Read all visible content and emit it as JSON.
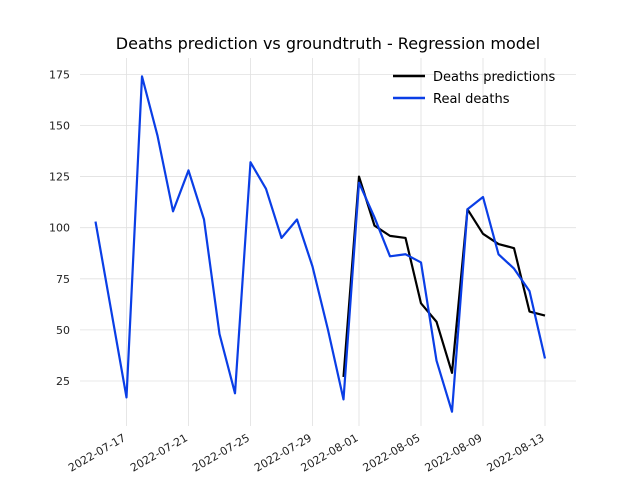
{
  "chart_data": {
    "type": "line",
    "title": "Deaths prediction vs groundtruth - Regression model",
    "xlabel": "",
    "ylabel": "",
    "x_type": "date",
    "xlim": [
      "2022-07-14",
      "2022-08-15"
    ],
    "ylim": [
      3,
      183
    ],
    "x_ticks": [
      "2022-07-17",
      "2022-07-21",
      "2022-07-25",
      "2022-07-29",
      "2022-08-01",
      "2022-08-05",
      "2022-08-09",
      "2022-08-13"
    ],
    "y_ticks": [
      25,
      50,
      75,
      100,
      125,
      150,
      175
    ],
    "grid": true,
    "legend_position": "top-right",
    "series": [
      {
        "name": "Deaths predictions",
        "color": "#000000",
        "points": [
          [
            "2022-07-31",
            27
          ],
          [
            "2022-08-01",
            125
          ],
          [
            "2022-08-02",
            101
          ],
          [
            "2022-08-03",
            96
          ],
          [
            "2022-08-04",
            95
          ],
          [
            "2022-08-05",
            63
          ],
          [
            "2022-08-06",
            54
          ],
          [
            "2022-08-07",
            29
          ],
          [
            "2022-08-08",
            109
          ],
          [
            "2022-08-09",
            97
          ],
          [
            "2022-08-10",
            92
          ],
          [
            "2022-08-11",
            90
          ],
          [
            "2022-08-12",
            59
          ],
          [
            "2022-08-13",
            57
          ]
        ]
      },
      {
        "name": "Real deaths",
        "color": "#0a3ee6",
        "points": [
          [
            "2022-07-15",
            103
          ],
          [
            "2022-07-16",
            60
          ],
          [
            "2022-07-17",
            17
          ],
          [
            "2022-07-18",
            174
          ],
          [
            "2022-07-19",
            145
          ],
          [
            "2022-07-20",
            108
          ],
          [
            "2022-07-21",
            128
          ],
          [
            "2022-07-22",
            104
          ],
          [
            "2022-07-23",
            48
          ],
          [
            "2022-07-24",
            19
          ],
          [
            "2022-07-25",
            132
          ],
          [
            "2022-07-26",
            119
          ],
          [
            "2022-07-27",
            95
          ],
          [
            "2022-07-28",
            104
          ],
          [
            "2022-07-29",
            81
          ],
          [
            "2022-07-30",
            50
          ],
          [
            "2022-07-31",
            16
          ],
          [
            "2022-08-01",
            122
          ],
          [
            "2022-08-02",
            105
          ],
          [
            "2022-08-03",
            86
          ],
          [
            "2022-08-04",
            87
          ],
          [
            "2022-08-05",
            83
          ],
          [
            "2022-08-06",
            35
          ],
          [
            "2022-08-07",
            10
          ],
          [
            "2022-08-08",
            109
          ],
          [
            "2022-08-09",
            115
          ],
          [
            "2022-08-10",
            87
          ],
          [
            "2022-08-11",
            80
          ],
          [
            "2022-08-12",
            69
          ],
          [
            "2022-08-13",
            36
          ]
        ]
      }
    ]
  }
}
